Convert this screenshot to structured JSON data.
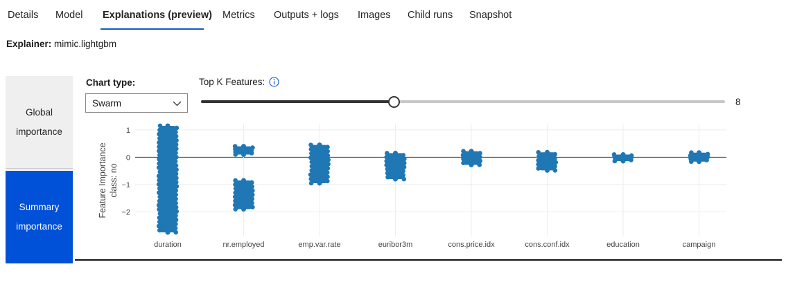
{
  "tabs": [
    {
      "label": "Details",
      "active": false
    },
    {
      "label": "Model",
      "active": false
    },
    {
      "label": "Explanations (preview)",
      "active": true
    },
    {
      "label": "Metrics",
      "active": false
    },
    {
      "label": "Outputs + logs",
      "active": false
    },
    {
      "label": "Images",
      "active": false
    },
    {
      "label": "Child runs",
      "active": false
    },
    {
      "label": "Snapshot",
      "active": false
    }
  ],
  "explainer": {
    "label": "Explainer:",
    "value": "mimic.lightgbm"
  },
  "sidebar": {
    "global_line1": "Global",
    "global_line2": "importance",
    "summary_line1": "Summary",
    "summary_line2": "importance"
  },
  "controls": {
    "chart_type_label": "Chart type:",
    "chart_type_value": "Swarm",
    "top_k_label": "Top K Features:",
    "top_k_value": "8",
    "top_k_fraction": 0.368
  },
  "colors": {
    "accent": "#0050d8",
    "tab_underline": "#0f5bc9",
    "point": "#1f77b4"
  },
  "icons": {
    "info": "info-icon",
    "dropdown": "chevron-down-icon"
  },
  "chart_data": {
    "type": "scatter",
    "subtype": "swarm",
    "ylabel_line1": "Feature Importance",
    "ylabel_line2": "class:  no",
    "ylim": [
      -2.9,
      1.2
    ],
    "yticks": [
      {
        "v": 1,
        "label": "1"
      },
      {
        "v": 0,
        "label": "0"
      },
      {
        "v": -1,
        "label": "−1"
      },
      {
        "v": -2,
        "label": "−2"
      }
    ],
    "categories": [
      "duration",
      "nr.employed",
      "emp.var.rate",
      "euribor3m",
      "cons.price.idx",
      "cons.conf.idx",
      "education",
      "campaign"
    ],
    "series": [
      {
        "category": "duration",
        "ranges": [
          [
            -2.75,
            1.15
          ]
        ],
        "spread": 24
      },
      {
        "category": "nr.employed",
        "ranges": [
          [
            0.1,
            0.4
          ],
          [
            -1.9,
            -0.85
          ]
        ],
        "spread": 24
      },
      {
        "category": "emp.var.rate",
        "ranges": [
          [
            -0.95,
            0.45
          ]
        ],
        "spread": 24
      },
      {
        "category": "euribor3m",
        "ranges": [
          [
            -0.8,
            0.15
          ]
        ],
        "spread": 24
      },
      {
        "category": "cons.price.idx",
        "ranges": [
          [
            -0.28,
            0.22
          ]
        ],
        "spread": 24
      },
      {
        "category": "cons.conf.idx",
        "ranges": [
          [
            -0.48,
            0.18
          ]
        ],
        "spread": 24
      },
      {
        "category": "education",
        "ranges": [
          [
            -0.14,
            0.1
          ]
        ],
        "spread": 24
      },
      {
        "category": "campaign",
        "ranges": [
          [
            -0.16,
            0.17
          ]
        ],
        "spread": 24
      }
    ],
    "grid": true
  }
}
